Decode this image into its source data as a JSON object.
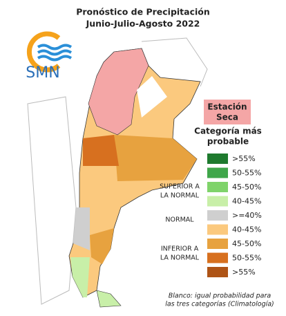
{
  "header": {
    "title": [
      "Pronóstico de Precipitación",
      "Junio-Julio-Agosto 2022"
    ],
    "logo_text": "SMN"
  },
  "season_box": {
    "lines": [
      "Estación",
      "Seca"
    ],
    "color": "#f4a6a6"
  },
  "legend": {
    "title": [
      "Categoría más",
      "probable"
    ],
    "items": [
      {
        "label": ">55%",
        "color": "#1e7a2e"
      },
      {
        "label": "50-55%",
        "color": "#3fa64a"
      },
      {
        "label": "45-50%",
        "color": "#7fd36a"
      },
      {
        "label": "40-45%",
        "color": "#c8efa8"
      },
      {
        "label": ">=40%",
        "color": "#cfcfcf"
      },
      {
        "label": "40-45%",
        "color": "#fbc97e"
      },
      {
        "label": "45-50%",
        "color": "#e7a23f"
      },
      {
        "label": "50-55%",
        "color": "#d7701f"
      },
      {
        "label": ">55%",
        "color": "#ae5416"
      }
    ],
    "groups": [
      [
        "SUPERIOR A",
        "LA NORMAL"
      ],
      [
        "NORMAL"
      ],
      [
        "INFERIOR A",
        "LA NORMAL"
      ]
    ]
  },
  "footnote": [
    "Blanco: igual probabilidad para",
    "las tres categorías (Climatología)"
  ]
}
